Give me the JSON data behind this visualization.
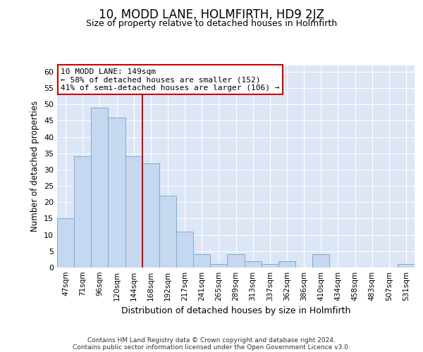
{
  "title": "10, MODD LANE, HOLMFIRTH, HD9 2JZ",
  "subtitle": "Size of property relative to detached houses in Holmfirth",
  "xlabel": "Distribution of detached houses by size in Holmfirth",
  "ylabel": "Number of detached properties",
  "categories": [
    "47sqm",
    "71sqm",
    "96sqm",
    "120sqm",
    "144sqm",
    "168sqm",
    "192sqm",
    "217sqm",
    "241sqm",
    "265sqm",
    "289sqm",
    "313sqm",
    "337sqm",
    "362sqm",
    "386sqm",
    "410sqm",
    "434sqm",
    "458sqm",
    "483sqm",
    "507sqm",
    "531sqm"
  ],
  "values": [
    15,
    34,
    49,
    46,
    34,
    32,
    22,
    11,
    4,
    1,
    4,
    2,
    1,
    2,
    0,
    4,
    0,
    0,
    0,
    0,
    1
  ],
  "bar_color": "#c5d8ef",
  "bar_edge_color": "#7aadd4",
  "vline_x_index": 4.5,
  "vline_color": "#cc0000",
  "annotation_text": "10 MODD LANE: 149sqm\n← 58% of detached houses are smaller (152)\n41% of semi-detached houses are larger (106) →",
  "annotation_box_color": "#ffffff",
  "annotation_box_edge_color": "#cc0000",
  "ylim": [
    0,
    62
  ],
  "yticks": [
    0,
    5,
    10,
    15,
    20,
    25,
    30,
    35,
    40,
    45,
    50,
    55,
    60
  ],
  "bg_color": "#dce6f5",
  "grid_color": "#ffffff",
  "footer_line1": "Contains HM Land Registry data © Crown copyright and database right 2024.",
  "footer_line2": "Contains public sector information licensed under the Open Government Licence v3.0."
}
